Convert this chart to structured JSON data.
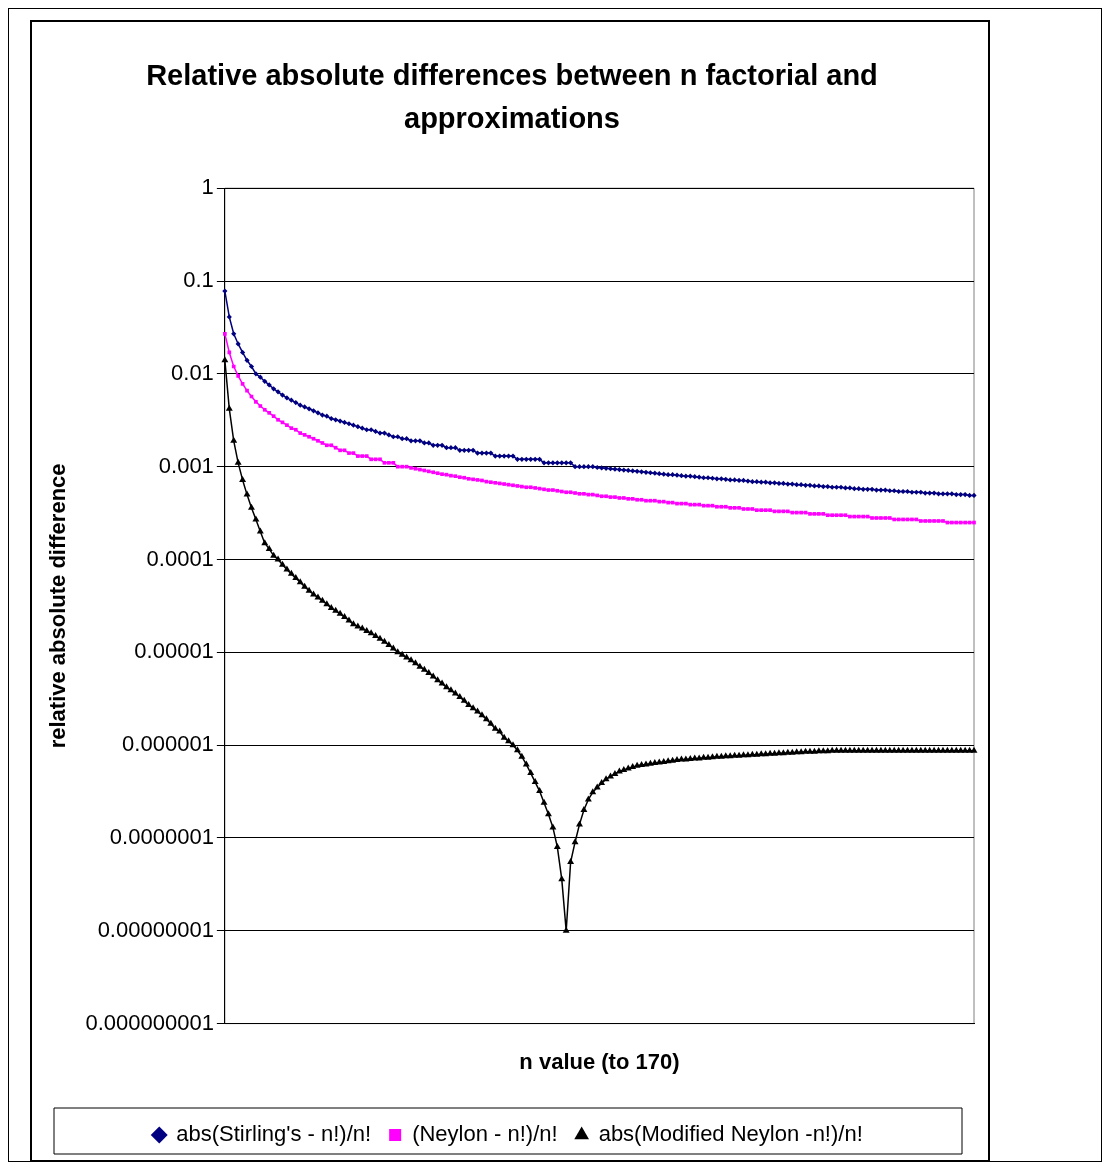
{
  "chart_data": {
    "type": "line",
    "title": "Relative absolute differences between n factorial and approximations",
    "xlabel": "n value (to 170)",
    "ylabel": "relative absolute difference",
    "categories": [
      null,
      null,
      null,
      null,
      null,
      null,
      null,
      null,
      null,
      null,
      null,
      null,
      null,
      null,
      null,
      null,
      null,
      null,
      null,
      null,
      null,
      null,
      null,
      null,
      null,
      null,
      null,
      null,
      null,
      null,
      null,
      null,
      null,
      null,
      null,
      null,
      null,
      null,
      null,
      null,
      null,
      null,
      null,
      null,
      null,
      null,
      null,
      null,
      null,
      null,
      null,
      null,
      null,
      null,
      null,
      null,
      null,
      null,
      null,
      null,
      null,
      null,
      null,
      null,
      null,
      null,
      null,
      null,
      null,
      null,
      null,
      null,
      null,
      null,
      null,
      null,
      null,
      null,
      null,
      null,
      null,
      null,
      null,
      null,
      null,
      null,
      null,
      null,
      null,
      null,
      null,
      null,
      null,
      null,
      null,
      null,
      null,
      null,
      null,
      null,
      null,
      null,
      null,
      null,
      null,
      null,
      null,
      null,
      null,
      null,
      null,
      null,
      null,
      null,
      null,
      null,
      null,
      null,
      null,
      null,
      null,
      null,
      null,
      null,
      null,
      null,
      null,
      null,
      null,
      null,
      null,
      null,
      null,
      null,
      null,
      null,
      null,
      null,
      null,
      null,
      null,
      null,
      null,
      null,
      null,
      null,
      null,
      null,
      null,
      null,
      null,
      null,
      null,
      null,
      null,
      null,
      null,
      null,
      null,
      null,
      null,
      null,
      null,
      null,
      null,
      null,
      null,
      null,
      null,
      null
    ],
    "series": [
      {
        "name": "abs(Stirling's - n!)/n!",
        "color": "#000080",
        "marker": "diamond",
        "values": [
          0.078,
          0.041,
          0.027,
          0.021,
          0.017,
          0.014,
          0.012,
          0.01,
          0.0092,
          0.0083,
          0.0076,
          0.0069,
          0.0064,
          0.0059,
          0.0055,
          0.0052,
          0.0049,
          0.0046,
          0.0044,
          0.0042,
          0.004,
          0.0038,
          0.0036,
          0.0035,
          0.0033,
          0.0032,
          0.0031,
          0.003,
          0.0029,
          0.0028,
          0.0027,
          0.0026,
          0.0025,
          0.0025,
          0.0024,
          0.0023,
          0.0023,
          0.0022,
          0.0021,
          0.0021,
          0.002,
          0.002,
          0.0019,
          0.0019,
          0.0019,
          0.0018,
          0.0018,
          0.0017,
          0.0017,
          0.0017,
          0.0016,
          0.0016,
          0.0016,
          0.0015,
          0.0015,
          0.0015,
          0.0015,
          0.0014,
          0.0014,
          0.0014,
          0.0014,
          0.0013,
          0.0013,
          0.0013,
          0.0013,
          0.0013,
          0.0012,
          0.0012,
          0.0012,
          0.0012,
          0.0012,
          0.0012,
          0.0011,
          0.0011,
          0.0011,
          0.0011,
          0.0011,
          0.0011,
          0.0011,
          0.001,
          0.001,
          0.001,
          0.001,
          0.001,
          0.00098,
          0.00097,
          0.00096,
          0.00095,
          0.00094,
          0.00093,
          0.00092,
          0.00091,
          0.0009,
          0.00089,
          0.00088,
          0.00087,
          0.00086,
          0.00085,
          0.00084,
          0.00083,
          0.00082,
          0.00082,
          0.00081,
          0.0008,
          0.00079,
          0.00079,
          0.00078,
          0.00077,
          0.00076,
          0.00076,
          0.00075,
          0.00074,
          0.00074,
          0.00073,
          0.00072,
          0.00072,
          0.00071,
          0.00071,
          0.0007,
          0.00069,
          0.00069,
          0.00068,
          0.00068,
          0.00067,
          0.00067,
          0.00066,
          0.00066,
          0.00065,
          0.00065,
          0.00064,
          0.00064,
          0.00063,
          0.00063,
          0.00062,
          0.00062,
          0.00061,
          0.00061,
          0.0006,
          0.0006,
          0.0006,
          0.00059,
          0.00059,
          0.00058,
          0.00058,
          0.00057,
          0.00057,
          0.00057,
          0.00056,
          0.00056,
          0.00056,
          0.00055,
          0.00055,
          0.00054,
          0.00054,
          0.00054,
          0.00053,
          0.00053,
          0.00053,
          0.00052,
          0.00052,
          0.00052,
          0.00051,
          0.00051,
          0.00051,
          0.00051,
          0.0005,
          0.0005,
          0.0005,
          0.00049,
          0.00049
        ]
      },
      {
        "name": "(Neylon - n!)/n!",
        "color": "#ff00ff",
        "marker": "square",
        "values": [
          0.027,
          0.017,
          0.012,
          0.0095,
          0.0078,
          0.0066,
          0.0057,
          0.005,
          0.0045,
          0.0041,
          0.0038,
          0.0035,
          0.0032,
          0.003,
          0.0028,
          0.0026,
          0.0025,
          0.0023,
          0.0022,
          0.0021,
          0.002,
          0.0019,
          0.0018,
          0.0017,
          0.0017,
          0.0016,
          0.0015,
          0.0015,
          0.0014,
          0.0014,
          0.0013,
          0.0013,
          0.0013,
          0.0012,
          0.0012,
          0.0012,
          0.0011,
          0.0011,
          0.0011,
          0.001,
          0.001,
          0.001,
          0.00097,
          0.00095,
          0.00093,
          0.00091,
          0.00089,
          0.00087,
          0.00085,
          0.00083,
          0.00082,
          0.0008,
          0.00079,
          0.00077,
          0.00076,
          0.00074,
          0.00073,
          0.00072,
          0.00071,
          0.00069,
          0.00068,
          0.00067,
          0.00066,
          0.00065,
          0.00064,
          0.00063,
          0.00062,
          0.00061,
          0.0006,
          0.0006,
          0.00059,
          0.00058,
          0.00057,
          0.00056,
          0.00056,
          0.00055,
          0.00054,
          0.00053,
          0.00053,
          0.00052,
          0.00051,
          0.00051,
          0.0005,
          0.0005,
          0.00049,
          0.00048,
          0.00048,
          0.00047,
          0.00047,
          0.00046,
          0.00046,
          0.00045,
          0.00045,
          0.00044,
          0.00044,
          0.00043,
          0.00043,
          0.00043,
          0.00042,
          0.00042,
          0.00041,
          0.00041,
          0.0004,
          0.0004,
          0.0004,
          0.00039,
          0.00039,
          0.00039,
          0.00038,
          0.00038,
          0.00038,
          0.00037,
          0.00037,
          0.00037,
          0.00036,
          0.00036,
          0.00036,
          0.00035,
          0.00035,
          0.00035,
          0.00034,
          0.00034,
          0.00034,
          0.00034,
          0.00033,
          0.00033,
          0.00033,
          0.00033,
          0.00032,
          0.00032,
          0.00032,
          0.00032,
          0.00031,
          0.00031,
          0.00031,
          0.00031,
          0.0003,
          0.0003,
          0.0003,
          0.0003,
          0.0003,
          0.00029,
          0.00029,
          0.00029,
          0.00029,
          0.00029,
          0.00028,
          0.00028,
          0.00028,
          0.00028,
          0.00028,
          0.00027,
          0.00027,
          0.00027,
          0.00027,
          0.00027,
          0.00027,
          0.00026,
          0.00026,
          0.00026,
          0.00026,
          0.00026,
          0.00026,
          0.00025,
          0.00025,
          0.00025,
          0.00025,
          0.00025,
          0.00025,
          0.00025
        ]
      },
      {
        "name": "abs(Modified Neylon -n!)/n!",
        "color": "#000000",
        "marker": "triangle",
        "values": [
          0.014,
          0.0042,
          0.0019,
          0.0011,
          0.00072,
          0.0005,
          0.00036,
          0.00027,
          0.0002,
          0.00015,
          0.00013,
          0.00011,
          0.0001,
          8.8e-05,
          7.8e-05,
          7e-05,
          6.3e-05,
          5.7e-05,
          5.1e-05,
          4.6e-05,
          4.2e-05,
          3.9e-05,
          3.6e-05,
          3.3e-05,
          3e-05,
          2.8e-05,
          2.6e-05,
          2.4e-05,
          2.2e-05,
          2e-05,
          1.9e-05,
          1.8e-05,
          1.7e-05,
          1.6e-05,
          1.5e-05,
          1.4e-05,
          1.3e-05,
          1.2e-05,
          1.1e-05,
          1e-05,
          9.4e-06,
          8.8e-06,
          8.2e-06,
          7.6e-06,
          7e-06,
          6.5e-06,
          6e-06,
          5.5e-06,
          5e-06,
          4.6e-06,
          4.2e-06,
          3.9e-06,
          3.6e-06,
          3.3e-06,
          3e-06,
          2.7e-06,
          2.5e-06,
          2.3e-06,
          2.1e-06,
          1.9e-06,
          1.7e-06,
          1.5e-06,
          1.4e-06,
          1.2e-06,
          1.1e-06,
          1e-06,
          8.8e-07,
          7.5e-07,
          6.2e-07,
          5e-07,
          4e-07,
          3.2e-07,
          2.4e-07,
          1.8e-07,
          1.3e-07,
          8e-08,
          3.6e-08,
          1e-08,
          5.5e-08,
          9e-08,
          1.4e-07,
          2e-07,
          2.6e-07,
          3.1e-07,
          3.5e-07,
          3.9e-07,
          4.3e-07,
          4.6e-07,
          4.9e-07,
          5.2e-07,
          5.4e-07,
          5.6e-07,
          5.8e-07,
          6e-07,
          6.1e-07,
          6.2e-07,
          6.3e-07,
          6.4e-07,
          6.5e-07,
          6.6e-07,
          6.7e-07,
          6.8e-07,
          6.9e-07,
          7e-07,
          7e-07,
          7.1e-07,
          7.2e-07,
          7.2e-07,
          7.3e-07,
          7.3e-07,
          7.4e-07,
          7.5e-07,
          7.5e-07,
          7.6e-07,
          7.6e-07,
          7.7e-07,
          7.7e-07,
          7.8e-07,
          7.8e-07,
          7.9e-07,
          7.9e-07,
          8e-07,
          8e-07,
          8.1e-07,
          8.1e-07,
          8.2e-07,
          8.2e-07,
          8.3e-07,
          8.3e-07,
          8.4e-07,
          8.4e-07,
          8.5e-07,
          8.5e-07,
          8.5e-07,
          8.6e-07,
          8.6e-07,
          8.6e-07,
          8.7e-07,
          8.7e-07,
          8.7e-07,
          8.7e-07,
          8.7e-07,
          8.7e-07,
          8.7e-07,
          8.7e-07,
          8.7e-07,
          8.7e-07,
          8.7e-07,
          8.7e-07,
          8.7e-07,
          8.7e-07,
          8.7e-07,
          8.7e-07,
          8.7e-07,
          8.7e-07,
          8.7e-07,
          8.7e-07,
          8.7e-07,
          8.7e-07,
          8.7e-07,
          8.7e-07,
          8.7e-07,
          8.7e-07,
          8.7e-07,
          8.7e-07,
          8.7e-07,
          8.7e-07,
          8.7e-07,
          8.7e-07,
          8.7e-07
        ]
      }
    ],
    "log": "y",
    "ylim": [
      1e-09,
      1
    ],
    "yticks": [
      {
        "value": 1e-09,
        "label": "0.000000001"
      },
      {
        "value": 1e-08,
        "label": "0.00000001"
      },
      {
        "value": 1e-07,
        "label": "0.0000001"
      },
      {
        "value": 1e-06,
        "label": "0.000001"
      },
      {
        "value": 1e-05,
        "label": "0.00001"
      },
      {
        "value": 0.0001,
        "label": "0.0001"
      },
      {
        "value": 0.001,
        "label": "0.001"
      },
      {
        "value": 0.01,
        "label": "0.01"
      },
      {
        "value": 0.1,
        "label": "0.1"
      },
      1
    ],
    "grid": "y",
    "legend": "bottom",
    "tick_labels": "y",
    "line_style": "solid"
  }
}
